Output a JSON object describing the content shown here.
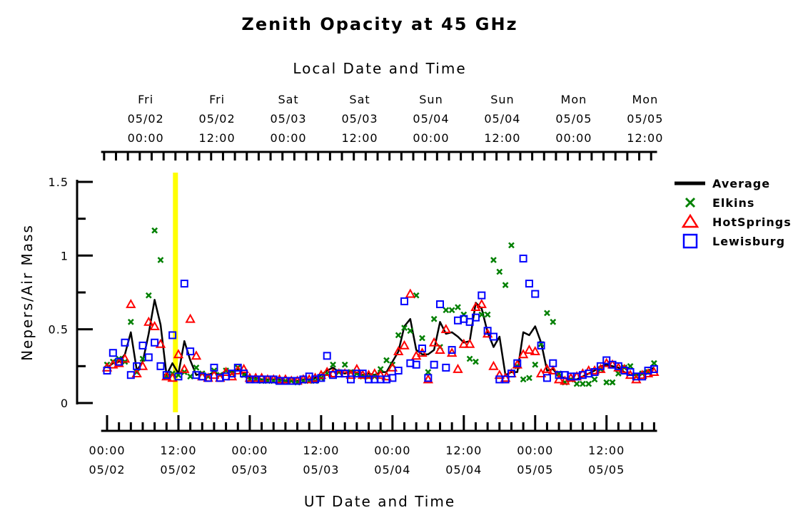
{
  "chart_data": {
    "type": "scatter",
    "title": "Zenith Opacity at 45 GHz",
    "top_axis_title": "Local Date and Time",
    "xlabel": "UT Date and Time",
    "ylabel": "Nepers/Air Mass",
    "ylim": [
      0,
      1.5
    ],
    "y_ticks": [
      {
        "value": 0,
        "label": "0"
      },
      {
        "value": 0.5,
        "label": "0.5"
      },
      {
        "value": 1,
        "label": "1"
      },
      {
        "value": 1.5,
        "label": "1.5"
      }
    ],
    "x_unit": "hours since 05/02 00:00 UT",
    "xlim": [
      -1,
      92.5
    ],
    "bottom_ticks": [
      {
        "x": 0,
        "time": "00:00",
        "date": "05/02"
      },
      {
        "x": 12,
        "time": "12:00",
        "date": "05/02"
      },
      {
        "x": 24,
        "time": "00:00",
        "date": "05/03"
      },
      {
        "x": 36,
        "time": "12:00",
        "date": "05/03"
      },
      {
        "x": 48,
        "time": "00:00",
        "date": "05/04"
      },
      {
        "x": 60,
        "time": "12:00",
        "date": "05/04"
      },
      {
        "x": 72,
        "time": "00:00",
        "date": "05/05"
      },
      {
        "x": 84,
        "time": "12:00",
        "date": "05/05"
      }
    ],
    "top_ticks": [
      {
        "x": 6.5,
        "day": "Fri",
        "date": "05/02",
        "time": "00:00"
      },
      {
        "x": 18.5,
        "day": "Fri",
        "date": "05/02",
        "time": "12:00"
      },
      {
        "x": 30.5,
        "day": "Sat",
        "date": "05/03",
        "time": "00:00"
      },
      {
        "x": 42.5,
        "day": "Sat",
        "date": "05/03",
        "time": "12:00"
      },
      {
        "x": 54.5,
        "day": "Sun",
        "date": "05/04",
        "time": "00:00"
      },
      {
        "x": 66.5,
        "day": "Sun",
        "date": "05/04",
        "time": "12:00"
      },
      {
        "x": 78.5,
        "day": "Mon",
        "date": "05/05",
        "time": "00:00"
      },
      {
        "x": 90.5,
        "day": "Mon",
        "date": "05/05",
        "time": "12:00"
      }
    ],
    "highlight": {
      "x": 11.5,
      "color": "#ffff00"
    },
    "legend_placement": "right",
    "colors": {
      "Average": "#000000",
      "Elkins": "#008000",
      "HotSprings": "#ff0000",
      "Lewisburg": "#0000ff"
    },
    "series": [
      {
        "name": "Average",
        "marker": "line",
        "x": [
          0,
          1,
          2,
          3,
          4,
          5,
          6,
          7,
          8,
          9,
          10,
          11,
          12,
          13,
          14,
          15,
          16,
          17,
          18,
          19,
          20,
          21,
          22,
          23,
          24,
          25,
          26,
          27,
          28,
          29,
          30,
          31,
          32,
          33,
          34,
          35,
          36,
          37,
          38,
          39,
          40,
          41,
          42,
          43,
          44,
          45,
          46,
          47,
          48,
          49,
          50,
          51,
          52,
          53,
          54,
          55,
          56,
          57,
          58,
          59,
          60,
          61,
          62,
          63,
          64,
          65,
          66,
          67,
          68,
          69,
          70,
          71,
          72,
          73,
          74,
          75,
          76,
          77,
          78,
          79,
          80,
          81,
          82,
          83,
          84,
          85,
          86,
          87,
          88,
          89,
          90,
          91,
          92
        ],
        "y": [
          0.24,
          0.27,
          0.28,
          0.33,
          0.48,
          0.22,
          0.28,
          0.47,
          0.7,
          0.53,
          0.19,
          0.27,
          0.2,
          0.42,
          0.29,
          0.19,
          0.2,
          0.19,
          0.21,
          0.19,
          0.22,
          0.21,
          0.23,
          0.2,
          0.17,
          0.17,
          0.16,
          0.16,
          0.16,
          0.16,
          0.15,
          0.15,
          0.15,
          0.16,
          0.16,
          0.17,
          0.19,
          0.22,
          0.24,
          0.21,
          0.2,
          0.22,
          0.2,
          0.19,
          0.2,
          0.19,
          0.21,
          0.21,
          0.28,
          0.35,
          0.52,
          0.57,
          0.36,
          0.33,
          0.33,
          0.36,
          0.55,
          0.47,
          0.48,
          0.45,
          0.41,
          0.42,
          0.68,
          0.64,
          0.48,
          0.38,
          0.45,
          0.19,
          0.21,
          0.21,
          0.48,
          0.46,
          0.52,
          0.41,
          0.22,
          0.23,
          0.18,
          0.17,
          0.16,
          0.16,
          0.18,
          0.2,
          0.22,
          0.25,
          0.26,
          0.25,
          0.24,
          0.21,
          0.19,
          0.19,
          0.21,
          0.22,
          0.24
        ]
      },
      {
        "name": "Elkins",
        "marker": "x",
        "x": [
          0,
          1,
          2,
          3,
          4,
          5,
          6,
          7,
          8,
          9,
          10,
          11,
          12,
          13,
          14,
          15,
          16,
          17,
          18,
          19,
          20,
          21,
          22,
          23,
          24,
          25,
          26,
          27,
          28,
          29,
          30,
          31,
          32,
          33,
          34,
          35,
          36,
          37,
          38,
          39,
          40,
          41,
          42,
          43,
          44,
          45,
          46,
          47,
          48,
          49,
          50,
          51,
          52,
          53,
          54,
          55,
          56,
          57,
          58,
          59,
          60,
          61,
          62,
          63,
          64,
          65,
          66,
          67,
          68,
          69,
          70,
          71,
          72,
          73,
          74,
          75,
          76,
          77,
          78,
          79,
          80,
          81,
          82,
          83,
          84,
          85,
          86,
          87,
          88,
          89,
          90,
          91,
          92
        ],
        "y": [
          0.26,
          0.28,
          0.3,
          0.28,
          0.55,
          0.21,
          0.3,
          0.73,
          1.17,
          0.97,
          0.18,
          0.2,
          0.19,
          0.21,
          0.18,
          0.24,
          0.2,
          0.18,
          0.22,
          0.19,
          0.22,
          0.2,
          0.24,
          0.19,
          0.16,
          0.16,
          0.15,
          0.15,
          0.15,
          0.15,
          0.15,
          0.15,
          0.14,
          0.15,
          0.15,
          0.15,
          0.17,
          0.2,
          0.26,
          0.21,
          0.26,
          0.21,
          0.2,
          0.18,
          0.18,
          0.18,
          0.23,
          0.29,
          0.26,
          0.46,
          0.51,
          0.49,
          0.73,
          0.44,
          0.21,
          0.57,
          0.38,
          0.63,
          0.63,
          0.65,
          0.6,
          0.3,
          0.28,
          0.6,
          0.6,
          0.97,
          0.89,
          0.8,
          1.07,
          0.25,
          0.16,
          0.17,
          0.26,
          0.4,
          0.61,
          0.55,
          0.2,
          0.14,
          0.16,
          0.13,
          0.13,
          0.13,
          0.16,
          0.23,
          0.14,
          0.14,
          0.2,
          0.24,
          0.25,
          0.18,
          0.2,
          0.21,
          0.27
        ]
      },
      {
        "name": "HotSprings",
        "marker": "triangle",
        "x": [
          0,
          1,
          2,
          3,
          4,
          5,
          6,
          7,
          8,
          9,
          10,
          11,
          12,
          13,
          14,
          15,
          16,
          17,
          18,
          19,
          20,
          21,
          22,
          23,
          24,
          25,
          26,
          27,
          28,
          29,
          30,
          31,
          32,
          33,
          34,
          35,
          36,
          37,
          38,
          39,
          40,
          41,
          42,
          43,
          44,
          45,
          46,
          47,
          48,
          49,
          50,
          51,
          52,
          53,
          54,
          55,
          56,
          57,
          58,
          59,
          60,
          61,
          62,
          63,
          64,
          65,
          66,
          67,
          68,
          69,
          70,
          71,
          72,
          73,
          74,
          75,
          76,
          77,
          78,
          79,
          80,
          81,
          82,
          83,
          84,
          85,
          86,
          87,
          88,
          89,
          90,
          91,
          92
        ],
        "y": [
          0.24,
          0.26,
          0.27,
          0.3,
          0.67,
          0.2,
          0.25,
          0.55,
          0.52,
          0.4,
          0.18,
          0.17,
          0.33,
          0.23,
          0.57,
          0.32,
          0.18,
          0.17,
          0.19,
          0.17,
          0.21,
          0.18,
          0.22,
          0.23,
          0.17,
          0.17,
          0.17,
          0.16,
          0.16,
          0.16,
          0.16,
          0.15,
          0.15,
          0.16,
          0.16,
          0.17,
          0.19,
          0.21,
          0.2,
          0.2,
          0.2,
          0.19,
          0.23,
          0.19,
          0.19,
          0.2,
          0.19,
          0.18,
          0.24,
          0.35,
          0.39,
          0.74,
          0.32,
          0.34,
          0.16,
          0.41,
          0.36,
          0.5,
          0.34,
          0.23,
          0.4,
          0.4,
          0.65,
          0.67,
          0.47,
          0.25,
          0.19,
          0.17,
          0.2,
          0.26,
          0.33,
          0.36,
          0.35,
          0.2,
          0.23,
          0.22,
          0.16,
          0.15,
          0.17,
          0.18,
          0.2,
          0.22,
          0.22,
          0.23,
          0.27,
          0.26,
          0.24,
          0.23,
          0.19,
          0.16,
          0.19,
          0.2,
          0.21
        ]
      },
      {
        "name": "Lewisburg",
        "marker": "square",
        "x": [
          0,
          1,
          2,
          3,
          4,
          5,
          6,
          7,
          8,
          9,
          10,
          11,
          12,
          13,
          14,
          15,
          16,
          17,
          18,
          19,
          20,
          21,
          22,
          23,
          24,
          25,
          26,
          27,
          28,
          29,
          30,
          31,
          32,
          33,
          34,
          35,
          36,
          37,
          38,
          39,
          40,
          41,
          42,
          43,
          44,
          45,
          46,
          47,
          48,
          49,
          50,
          51,
          52,
          53,
          54,
          55,
          56,
          57,
          58,
          59,
          60,
          61,
          62,
          63,
          64,
          65,
          66,
          67,
          68,
          69,
          70,
          71,
          72,
          73,
          74,
          75,
          76,
          77,
          78,
          79,
          80,
          81,
          82,
          83,
          84,
          85,
          86,
          87,
          88,
          89,
          90,
          91,
          92
        ],
        "y": [
          0.22,
          0.34,
          0.28,
          0.41,
          0.19,
          0.25,
          0.39,
          0.31,
          0.41,
          0.25,
          0.19,
          0.46,
          0.18,
          0.81,
          0.35,
          0.19,
          0.18,
          0.17,
          0.24,
          0.17,
          0.18,
          0.2,
          0.24,
          0.2,
          0.16,
          0.16,
          0.16,
          0.16,
          0.16,
          0.15,
          0.15,
          0.15,
          0.15,
          0.16,
          0.18,
          0.16,
          0.17,
          0.32,
          0.19,
          0.2,
          0.2,
          0.16,
          0.2,
          0.2,
          0.16,
          0.16,
          0.16,
          0.16,
          0.17,
          0.22,
          0.69,
          0.27,
          0.26,
          0.37,
          0.17,
          0.26,
          0.67,
          0.24,
          0.36,
          0.56,
          0.57,
          0.55,
          0.58,
          0.73,
          0.49,
          0.45,
          0.16,
          0.16,
          0.2,
          0.27,
          0.98,
          0.81,
          0.74,
          0.39,
          0.17,
          0.27,
          0.19,
          0.19,
          0.18,
          0.18,
          0.19,
          0.2,
          0.21,
          0.25,
          0.29,
          0.26,
          0.25,
          0.22,
          0.21,
          0.18,
          0.18,
          0.22,
          0.23
        ]
      }
    ]
  }
}
